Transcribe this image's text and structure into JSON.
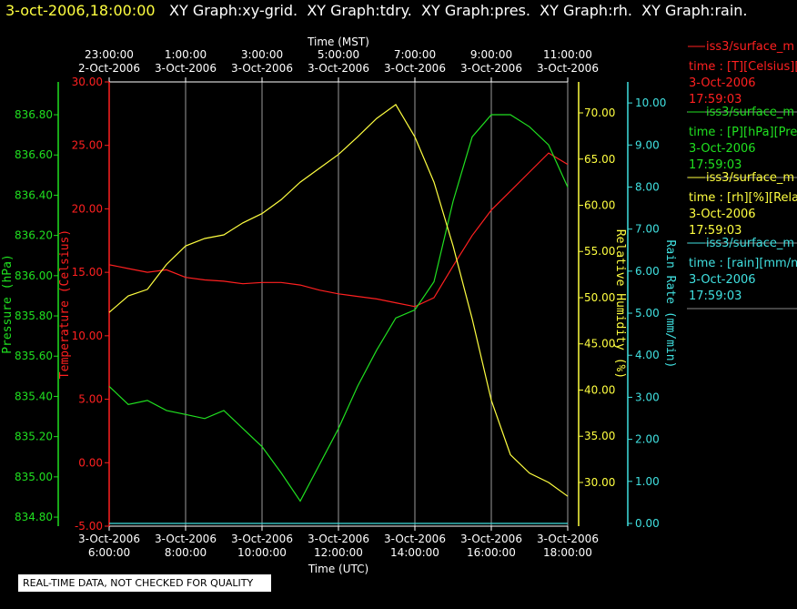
{
  "chart_data": {
    "type": "line",
    "title_time": "3-oct-2006,18:00:00",
    "title": "XY Graph:xy-grid.  XY Graph:tdry.  XY Graph:pres.  XY Graph:rh.  XY Graph:rain.",
    "xlabel": "Time (UTC)",
    "x2label": "Time (MST)",
    "note": "REAL-TIME DATA, NOT CHECKED FOR QUALITY",
    "grid": true,
    "xlim": [
      6,
      18
    ],
    "xticks": [
      {
        "value": 6,
        "label": [
          "3-Oct-2006",
          "6:00:00"
        ]
      },
      {
        "value": 8,
        "label": [
          "3-Oct-2006",
          "8:00:00"
        ]
      },
      {
        "value": 10,
        "label": [
          "3-Oct-2006",
          "10:00:00"
        ]
      },
      {
        "value": 12,
        "label": [
          "3-Oct-2006",
          "12:00:00"
        ]
      },
      {
        "value": 14,
        "label": [
          "3-Oct-2006",
          "14:00:00"
        ]
      },
      {
        "value": 16,
        "label": [
          "3-Oct-2006",
          "16:00:00"
        ]
      },
      {
        "value": 18,
        "label": [
          "3-Oct-2006",
          "18:00:00"
        ]
      }
    ],
    "x2ticks": [
      {
        "value": 6,
        "label": [
          "23:00:00",
          "2-Oct-2006"
        ]
      },
      {
        "value": 8,
        "label": [
          "1:00:00",
          "3-Oct-2006"
        ]
      },
      {
        "value": 10,
        "label": [
          "3:00:00",
          "3-Oct-2006"
        ]
      },
      {
        "value": 12,
        "label": [
          "5:00:00",
          "3-Oct-2006"
        ]
      },
      {
        "value": 14,
        "label": [
          "7:00:00",
          "3-Oct-2006"
        ]
      },
      {
        "value": 16,
        "label": [
          "9:00:00",
          "3-Oct-2006"
        ]
      },
      {
        "value": 18,
        "label": [
          "11:00:00",
          "3-Oct-2006"
        ]
      }
    ],
    "x": [
      6,
      6.5,
      7,
      7.5,
      8,
      8.5,
      9,
      9.5,
      10,
      10.5,
      11,
      11.5,
      12,
      12.5,
      13,
      13.5,
      14,
      14.5,
      15,
      15.5,
      16,
      16.5,
      17,
      17.5,
      18
    ],
    "series": [
      {
        "name": "iss3/surface_m",
        "legend_lines": [
          "time : [T][Celsius][T",
          "3-Oct-2006",
          "17:59:03"
        ],
        "color": "#ff2020",
        "axis_label": "Temperature (Celsius)",
        "ylim": [
          -5,
          30
        ],
        "yticks": [
          {
            "value": -5,
            "label": "-5.00"
          },
          {
            "value": 0,
            "label": "0.00"
          },
          {
            "value": 5,
            "label": "5.00"
          },
          {
            "value": 10,
            "label": "10.00"
          },
          {
            "value": 15,
            "label": "15.00"
          },
          {
            "value": 20,
            "label": "20.00"
          },
          {
            "value": 25,
            "label": "25.00"
          },
          {
            "value": 30,
            "label": "30.00"
          }
        ],
        "values": [
          15.6,
          15.3,
          15.0,
          15.2,
          14.6,
          14.4,
          14.3,
          14.1,
          14.2,
          14.2,
          14.0,
          13.6,
          13.3,
          13.1,
          12.9,
          12.6,
          12.3,
          13.0,
          15.5,
          17.9,
          19.9,
          21.4,
          22.9,
          24.4,
          23.5
        ]
      },
      {
        "name": "iss3/surface_m",
        "legend_lines": [
          "time : [P][hPa][Pres",
          "3-Oct-2006",
          "17:59:03"
        ],
        "color": "#20e020",
        "axis_label": "Pressure (hPa)",
        "ylim": [
          834.755,
          836.963
        ],
        "yticks": [
          {
            "value": 834.8,
            "label": "834.80"
          },
          {
            "value": 835.0,
            "label": "835.00"
          },
          {
            "value": 835.2,
            "label": "835.20"
          },
          {
            "value": 835.4,
            "label": "835.40"
          },
          {
            "value": 835.6,
            "label": "835.60"
          },
          {
            "value": 835.8,
            "label": "835.80"
          },
          {
            "value": 836.0,
            "label": "836.00"
          },
          {
            "value": 836.2,
            "label": "836.20"
          },
          {
            "value": 836.4,
            "label": "836.40"
          },
          {
            "value": 836.6,
            "label": "836.60"
          },
          {
            "value": 836.8,
            "label": "836.80"
          }
        ],
        "values": [
          835.45,
          835.36,
          835.38,
          835.33,
          835.31,
          835.29,
          835.33,
          835.24,
          835.15,
          835.02,
          834.88,
          835.06,
          835.24,
          835.45,
          835.63,
          835.79,
          835.83,
          835.97,
          836.37,
          836.69,
          836.8,
          836.8,
          836.74,
          836.65,
          836.44
        ]
      },
      {
        "name": "iss3/surface_m",
        "legend_lines": [
          "time : [rh][%][Relativ",
          "3-Oct-2006",
          "17:59:03"
        ],
        "color": "#ffff40",
        "axis_label": "Relative Humidity (%)",
        "ylim": [
          25.27,
          73.35
        ],
        "yticks": [
          {
            "value": 30,
            "label": "30.00"
          },
          {
            "value": 35,
            "label": "35.00"
          },
          {
            "value": 40,
            "label": "40.00"
          },
          {
            "value": 45,
            "label": "45.00"
          },
          {
            "value": 50,
            "label": "50.00"
          },
          {
            "value": 55,
            "label": "55.00"
          },
          {
            "value": 60,
            "label": "60.00"
          },
          {
            "value": 65,
            "label": "65.00"
          },
          {
            "value": 70,
            "label": "70.00"
          }
        ],
        "values": [
          48.4,
          50.2,
          50.9,
          53.6,
          55.6,
          56.4,
          56.8,
          58.1,
          59.1,
          60.6,
          62.5,
          64.0,
          65.5,
          67.4,
          69.4,
          70.9,
          67.4,
          62.5,
          55.6,
          47.7,
          38.9,
          33.0,
          31.0,
          30.0,
          28.5
        ]
      },
      {
        "name": "iss3/surface_m",
        "legend_lines": [
          "time : [rain][mm/min",
          "3-Oct-2006",
          "17:59:03"
        ],
        "color": "#40e0e0",
        "axis_label": "Rain Rate (mm/min)",
        "ylim": [
          -0.065,
          10.5
        ],
        "yticks": [
          {
            "value": 0,
            "label": "0.00"
          },
          {
            "value": 1,
            "label": "1.00"
          },
          {
            "value": 2,
            "label": "2.00"
          },
          {
            "value": 3,
            "label": "3.00"
          },
          {
            "value": 4,
            "label": "4.00"
          },
          {
            "value": 5,
            "label": "5.00"
          },
          {
            "value": 6,
            "label": "6.00"
          },
          {
            "value": 7,
            "label": "7.00"
          },
          {
            "value": 8,
            "label": "8.00"
          },
          {
            "value": 9,
            "label": "9.00"
          },
          {
            "value": 10,
            "label": "10.00"
          }
        ],
        "values": [
          0,
          0,
          0,
          0,
          0,
          0,
          0,
          0,
          0,
          0,
          0,
          0,
          0,
          0,
          0,
          0,
          0,
          0,
          0,
          0,
          0,
          0,
          0,
          0,
          0
        ]
      }
    ]
  }
}
